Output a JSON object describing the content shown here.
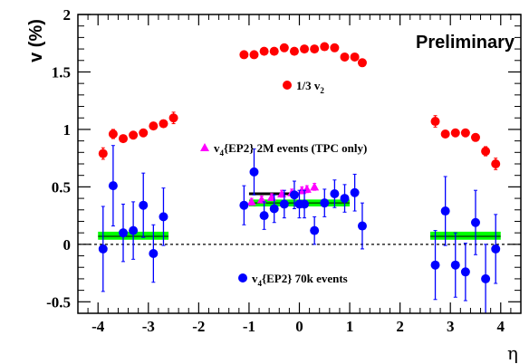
{
  "chart_data": {
    "type": "scatter",
    "annotation": "Preliminary",
    "xlabel": "η",
    "ylabel": "v (%)",
    "xlim": [
      -4.4,
      4.4
    ],
    "ylim": [
      -0.6,
      2.0
    ],
    "x_ticks": [
      "-4",
      "-3",
      "-2",
      "-1",
      "0",
      "1",
      "2",
      "3",
      "4"
    ],
    "y_ticks": [
      "-0.5",
      "0",
      "0.5",
      "1",
      "1.5",
      "2"
    ],
    "series": [
      {
        "name": "1/3 v",
        "name_sub": "2",
        "color": "#ff0000",
        "marker": "circle",
        "points": [
          {
            "x": -3.9,
            "y": 0.79,
            "err": 0.05
          },
          {
            "x": -3.7,
            "y": 0.96,
            "err": 0.04
          },
          {
            "x": -3.5,
            "y": 0.92,
            "err": 0.03
          },
          {
            "x": -3.3,
            "y": 0.95,
            "err": 0.03
          },
          {
            "x": -3.1,
            "y": 0.97,
            "err": 0.03
          },
          {
            "x": -2.9,
            "y": 1.03,
            "err": 0.03
          },
          {
            "x": -2.7,
            "y": 1.05,
            "err": 0.03
          },
          {
            "x": -2.5,
            "y": 1.1,
            "err": 0.05
          },
          {
            "x": -1.1,
            "y": 1.65,
            "err": 0.02
          },
          {
            "x": -0.9,
            "y": 1.65,
            "err": 0.02
          },
          {
            "x": -0.7,
            "y": 1.68,
            "err": 0.02
          },
          {
            "x": -0.5,
            "y": 1.68,
            "err": 0.02
          },
          {
            "x": -0.3,
            "y": 1.71,
            "err": 0.02
          },
          {
            "x": -0.1,
            "y": 1.68,
            "err": 0.02
          },
          {
            "x": 0.1,
            "y": 1.7,
            "err": 0.02
          },
          {
            "x": 0.3,
            "y": 1.7,
            "err": 0.02
          },
          {
            "x": 0.5,
            "y": 1.72,
            "err": 0.02
          },
          {
            "x": 0.7,
            "y": 1.71,
            "err": 0.02
          },
          {
            "x": 0.9,
            "y": 1.63,
            "err": 0.02
          },
          {
            "x": 1.1,
            "y": 1.63,
            "err": 0.02
          },
          {
            "x": 1.25,
            "y": 1.58,
            "err": 0.02
          },
          {
            "x": 2.7,
            "y": 1.07,
            "err": 0.05
          },
          {
            "x": 2.9,
            "y": 0.96,
            "err": 0.03
          },
          {
            "x": 3.1,
            "y": 0.97,
            "err": 0.03
          },
          {
            "x": 3.3,
            "y": 0.97,
            "err": 0.03
          },
          {
            "x": 3.5,
            "y": 0.93,
            "err": 0.03
          },
          {
            "x": 3.7,
            "y": 0.81,
            "err": 0.04
          },
          {
            "x": 3.9,
            "y": 0.7,
            "err": 0.05
          }
        ]
      },
      {
        "name": "v",
        "name_sub": "4",
        "name_rest": "{EP2} 2M events (TPC only)",
        "color": "#ff00ff",
        "marker": "triangle",
        "points": [
          {
            "x": -0.95,
            "y": 0.37,
            "err": 0.03
          },
          {
            "x": -0.75,
            "y": 0.39,
            "err": 0.03
          },
          {
            "x": -0.55,
            "y": 0.41,
            "err": 0.03
          },
          {
            "x": -0.35,
            "y": 0.44,
            "err": 0.03
          },
          {
            "x": -0.15,
            "y": 0.45,
            "err": 0.03
          },
          {
            "x": 0.05,
            "y": 0.47,
            "err": 0.03
          },
          {
            "x": 0.15,
            "y": 0.48,
            "err": 0.03
          },
          {
            "x": 0.3,
            "y": 0.5,
            "err": 0.03
          }
        ]
      },
      {
        "name": "v",
        "name_sub": "4",
        "name_rest": "{EP2} 70k events",
        "color": "#0000ff",
        "marker": "circle",
        "points": [
          {
            "x": -3.9,
            "y": -0.04,
            "err": 0.37
          },
          {
            "x": -3.7,
            "y": 0.51,
            "err": 0.35
          },
          {
            "x": -3.5,
            "y": 0.1,
            "err": 0.25
          },
          {
            "x": -3.3,
            "y": 0.12,
            "err": 0.25
          },
          {
            "x": -3.1,
            "y": 0.34,
            "err": 0.28
          },
          {
            "x": -2.9,
            "y": -0.08,
            "err": 0.25
          },
          {
            "x": -2.7,
            "y": 0.24,
            "err": 0.25
          },
          {
            "x": -1.1,
            "y": 0.34,
            "err": 0.17
          },
          {
            "x": -0.9,
            "y": 0.63,
            "err": 0.2
          },
          {
            "x": -0.7,
            "y": 0.25,
            "err": 0.12
          },
          {
            "x": -0.5,
            "y": 0.31,
            "err": 0.12
          },
          {
            "x": -0.3,
            "y": 0.35,
            "err": 0.12
          },
          {
            "x": -0.1,
            "y": 0.43,
            "err": 0.12
          },
          {
            "x": 0.0,
            "y": 0.35,
            "err": 0.12
          },
          {
            "x": 0.1,
            "y": 0.35,
            "err": 0.12
          },
          {
            "x": 0.3,
            "y": 0.12,
            "err": 0.12
          },
          {
            "x": 0.5,
            "y": 0.36,
            "err": 0.12
          },
          {
            "x": 0.7,
            "y": 0.44,
            "err": 0.12
          },
          {
            "x": 0.9,
            "y": 0.4,
            "err": 0.12
          },
          {
            "x": 1.1,
            "y": 0.45,
            "err": 0.16
          },
          {
            "x": 1.25,
            "y": 0.16,
            "err": 0.2
          },
          {
            "x": 2.7,
            "y": -0.18,
            "err": 0.3
          },
          {
            "x": 2.9,
            "y": 0.29,
            "err": 0.3
          },
          {
            "x": 3.1,
            "y": -0.18,
            "err": 0.28
          },
          {
            "x": 3.3,
            "y": -0.24,
            "err": 0.25
          },
          {
            "x": 3.5,
            "y": 0.19,
            "err": 0.28
          },
          {
            "x": 3.7,
            "y": -0.3,
            "err": 0.3
          },
          {
            "x": 3.9,
            "y": -0.04,
            "err": 0.3
          }
        ]
      }
    ],
    "bands": [
      {
        "x0": -4.0,
        "x1": -2.6,
        "y0": 0.04,
        "y1": 0.11,
        "yc": 0.07,
        "color": "#00ff00"
      },
      {
        "x0": -1.0,
        "x1": 1.0,
        "y0": 0.33,
        "y1": 0.39,
        "yc": 0.36,
        "color": "#00ff00"
      },
      {
        "x0": 2.6,
        "x1": 4.0,
        "y0": 0.04,
        "y1": 0.11,
        "yc": 0.07,
        "color": "#00ff00"
      }
    ],
    "reference_line": {
      "x0": -1.0,
      "x1": 0.0,
      "y": 0.44,
      "color": "#000000"
    },
    "zero_line": {
      "y": 0,
      "style": "dashed"
    }
  }
}
